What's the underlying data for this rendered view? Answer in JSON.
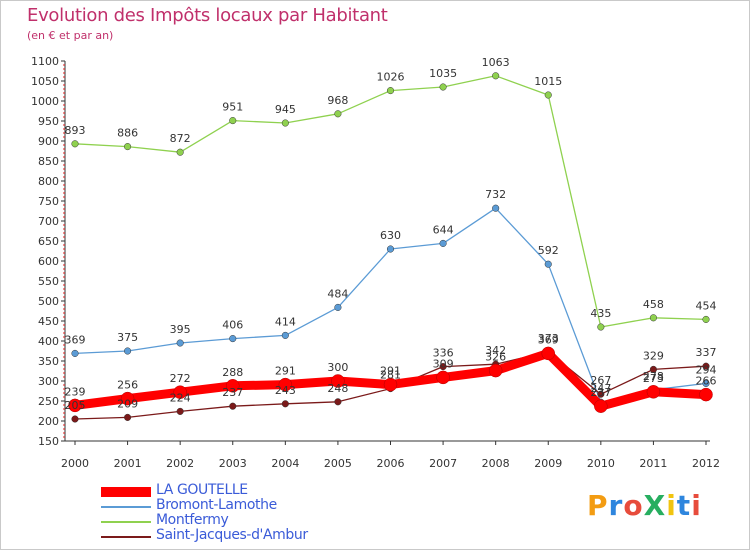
{
  "title": "Evolution des Impôts locaux par Habitant",
  "subtitle": "(en € et par an)",
  "logo": {
    "text": "ProXiti",
    "colors": [
      "#f39c12",
      "#2e86de",
      "#e74c3c",
      "#27ae60",
      "#f1c40f",
      "#2e86de",
      "#e74c3c"
    ]
  },
  "chart_data": {
    "type": "line",
    "title": "Evolution des Impôts locaux par Habitant",
    "subtitle": "(en € et par an)",
    "xlabel": "",
    "ylabel": "",
    "x": [
      "2000",
      "2001",
      "2002",
      "2003",
      "2004",
      "2005",
      "2006",
      "2007",
      "2008",
      "2009",
      "2010",
      "2011",
      "2012"
    ],
    "ylim": [
      150,
      1100
    ],
    "yticks": [
      150,
      200,
      250,
      300,
      350,
      400,
      450,
      500,
      550,
      600,
      650,
      700,
      750,
      800,
      850,
      900,
      950,
      1000,
      1050,
      1100
    ],
    "grid": false,
    "legend_position": "bottom-left",
    "series": [
      {
        "name": "LA GOUTELLE",
        "color": "#ff0000",
        "values": [
          239,
          256,
          272,
          288,
          291,
          300,
          291,
          309,
          326,
          369,
          237,
          273,
          266
        ]
      },
      {
        "name": "Bromont-Lamothe",
        "color": "#5b9bd5",
        "values": [
          369,
          375,
          395,
          406,
          414,
          484,
          630,
          644,
          732,
          592,
          247,
          278,
          294
        ]
      },
      {
        "name": "Montfermy",
        "color": "#8fd14f",
        "values": [
          893,
          886,
          872,
          951,
          945,
          968,
          1026,
          1035,
          1063,
          1015,
          435,
          458,
          454
        ]
      },
      {
        "name": "Saint-Jacques-d'Ambur",
        "color": "#7b1a1a",
        "values": [
          205,
          209,
          224,
          237,
          243,
          248,
          281,
          336,
          342,
          373,
          267,
          329,
          337
        ]
      }
    ]
  }
}
